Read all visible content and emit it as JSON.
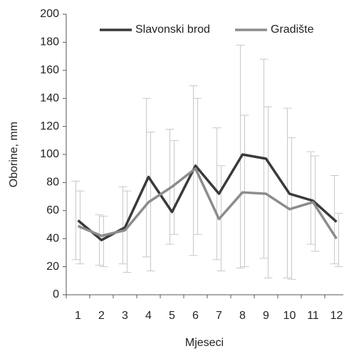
{
  "chart_data": {
    "type": "line",
    "y_label": "Oborine, mm",
    "x_label": "Mjeseci",
    "categories": [
      "1",
      "2",
      "3",
      "4",
      "5",
      "6",
      "7",
      "8",
      "9",
      "10",
      "11",
      "12"
    ],
    "series": [
      {
        "name": "Slavonski brod",
        "color": "#3a3a3a",
        "values": [
          53,
          39,
          48,
          84,
          59,
          92,
          72,
          100,
          97,
          72,
          67,
          52
        ],
        "low": [
          25,
          21,
          22,
          27,
          36,
          28,
          25,
          19,
          26,
          12,
          36,
          22
        ],
        "high": [
          81,
          57,
          77,
          140,
          118,
          149,
          119,
          178,
          168,
          133,
          102,
          85
        ]
      },
      {
        "name": "Gradište",
        "color": "#8c8c8c",
        "values": [
          49,
          42,
          46,
          66,
          77,
          90,
          54,
          73,
          72,
          61,
          66,
          40
        ],
        "low": [
          22,
          20,
          16,
          17,
          43,
          43,
          17,
          20,
          12,
          11,
          31,
          20
        ],
        "high": [
          74,
          56,
          74,
          116,
          110,
          140,
          92,
          128,
          134,
          112,
          99,
          58
        ]
      }
    ],
    "ylim": [
      0,
      200
    ],
    "yticks": [
      0,
      20,
      40,
      60,
      80,
      100,
      120,
      140,
      160,
      180,
      200
    ],
    "error_color": "#c8c8c8",
    "legend": "top"
  }
}
